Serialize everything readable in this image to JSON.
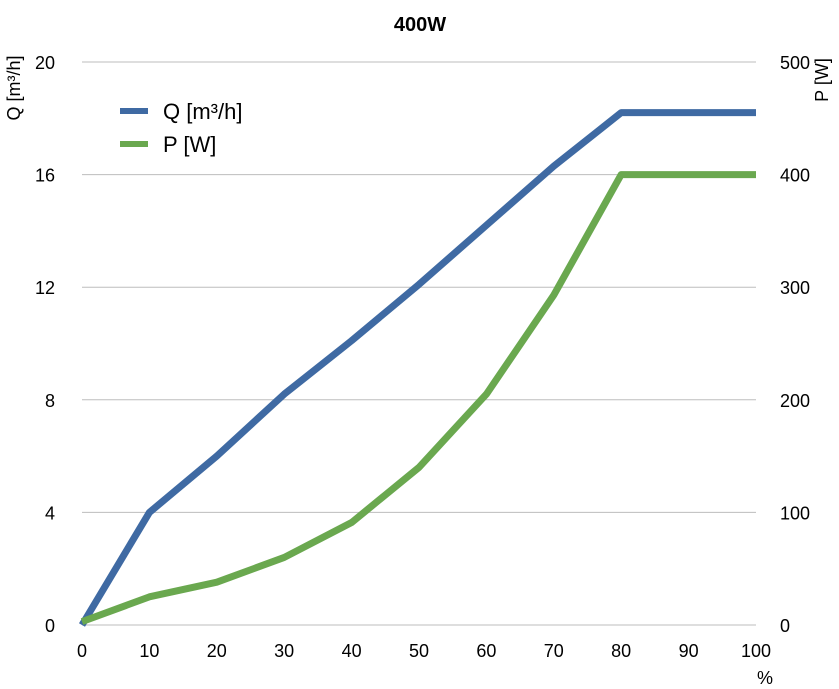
{
  "chart_data": {
    "type": "line",
    "title": "400W",
    "xlabel": "%",
    "ylabel_left": "Q [m³/h]",
    "ylabel_right": "P [W]",
    "x": [
      0,
      10,
      20,
      30,
      40,
      50,
      60,
      70,
      80,
      90,
      100
    ],
    "x_ticks": [
      "0",
      "10",
      "20",
      "30",
      "40",
      "50",
      "60",
      "70",
      "80",
      "90",
      "100"
    ],
    "y_left_ticks": [
      "0",
      "4",
      "8",
      "12",
      "16",
      "20"
    ],
    "y_right_ticks": [
      "0",
      "100",
      "200",
      "300",
      "400",
      "500"
    ],
    "xlim": [
      0,
      100
    ],
    "ylim_left": [
      0,
      20
    ],
    "ylim_right": [
      0,
      500
    ],
    "grid": true,
    "legend_position": "top-left",
    "series": [
      {
        "name": "Q [m³/h]",
        "axis": "left",
        "color": "#3f6aa3",
        "values": [
          0,
          4,
          6,
          8.2,
          10.1,
          12.1,
          14.2,
          16.3,
          18.2,
          18.2,
          18.2
        ]
      },
      {
        "name": "P [W]",
        "axis": "right",
        "color": "#6aa84f",
        "values": [
          3,
          25,
          38,
          60,
          91,
          140,
          205,
          293,
          400,
          400,
          400
        ]
      }
    ]
  }
}
